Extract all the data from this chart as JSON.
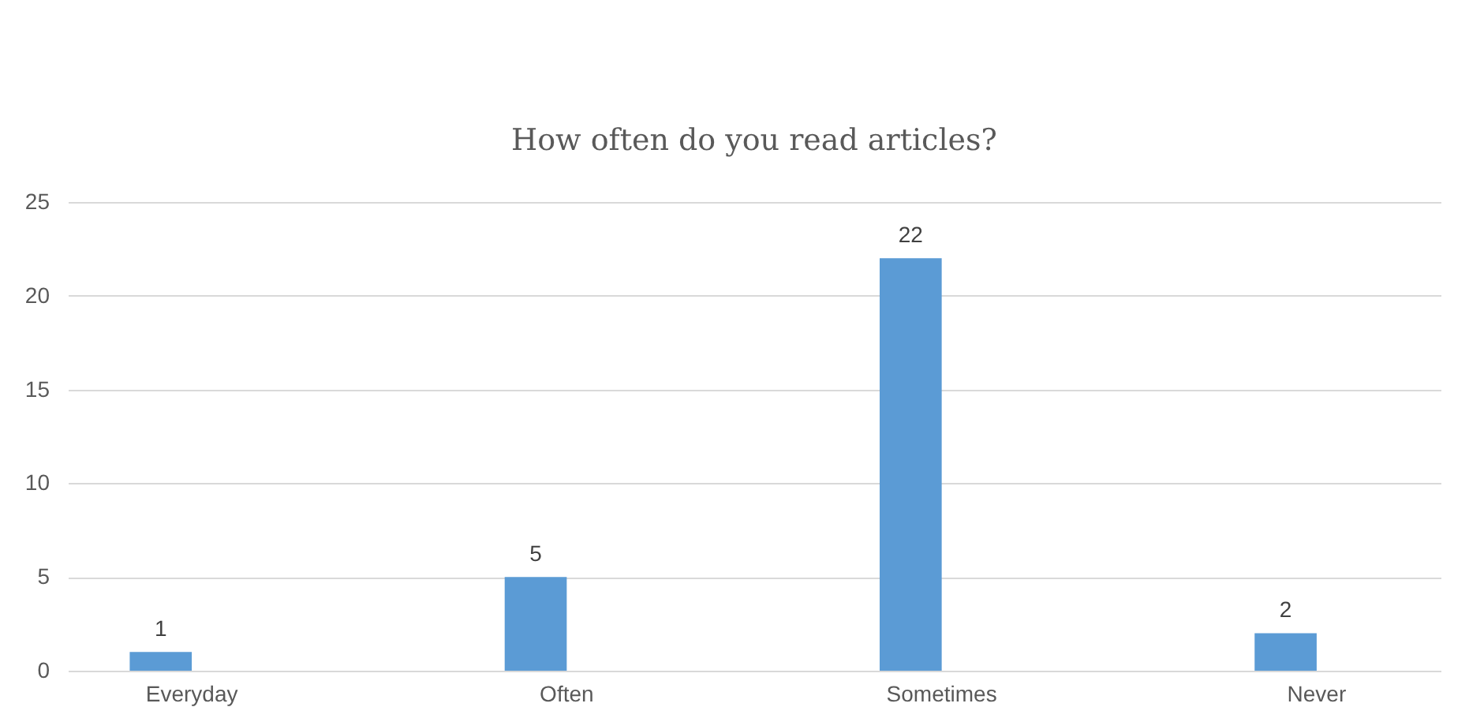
{
  "chart_data": {
    "type": "bar",
    "title": "How often do you read articles?",
    "categories": [
      "Everyday",
      "Often",
      "Sometimes",
      "Never"
    ],
    "values": [
      1,
      5,
      22,
      2
    ],
    "color": "#5b9bd5",
    "ylim": [
      0,
      25
    ],
    "yticks": [
      0,
      5,
      10,
      15,
      20,
      25
    ],
    "grid": "y",
    "data_labels": true
  }
}
